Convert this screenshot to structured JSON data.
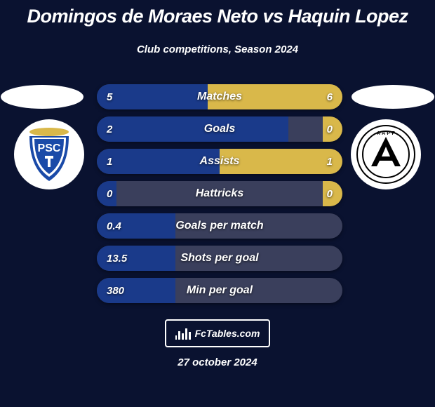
{
  "colors": {
    "background": "#0a1230",
    "bar_bg": "#3a3f5c",
    "bar_left": "#1a3a8a",
    "bar_right": "#d9b84a",
    "text": "#ffffff",
    "photo_bg": "#ffffff",
    "crest_bg": "#ffffff"
  },
  "title": {
    "text": "Domingos de Moraes Neto vs Haquin Lopez",
    "fontsize": 27
  },
  "subtitle": {
    "text": "Club competitions, Season 2024",
    "fontsize": 15
  },
  "footer": {
    "brand": "FcTables.com",
    "date": "27 october 2024",
    "date_fontsize": 15
  },
  "crests": {
    "left_label": "PSC",
    "right_label": "AAPP"
  },
  "comparison": {
    "label_fontsize": 16,
    "value_fontsize": 15,
    "rows": [
      {
        "label": "Matches",
        "left": "5",
        "right": "6",
        "left_pct": 45,
        "right_pct": 55
      },
      {
        "label": "Goals",
        "left": "2",
        "right": "0",
        "left_pct": 78,
        "right_pct": 8
      },
      {
        "label": "Assists",
        "left": "1",
        "right": "1",
        "left_pct": 50,
        "right_pct": 50
      },
      {
        "label": "Hattricks",
        "left": "0",
        "right": "0",
        "left_pct": 8,
        "right_pct": 8
      },
      {
        "label": "Goals per match",
        "left": "0.4",
        "right": "",
        "left_pct": 32,
        "right_pct": 0
      },
      {
        "label": "Shots per goal",
        "left": "13.5",
        "right": "",
        "left_pct": 32,
        "right_pct": 0
      },
      {
        "label": "Min per goal",
        "left": "380",
        "right": "",
        "left_pct": 32,
        "right_pct": 0
      }
    ]
  }
}
